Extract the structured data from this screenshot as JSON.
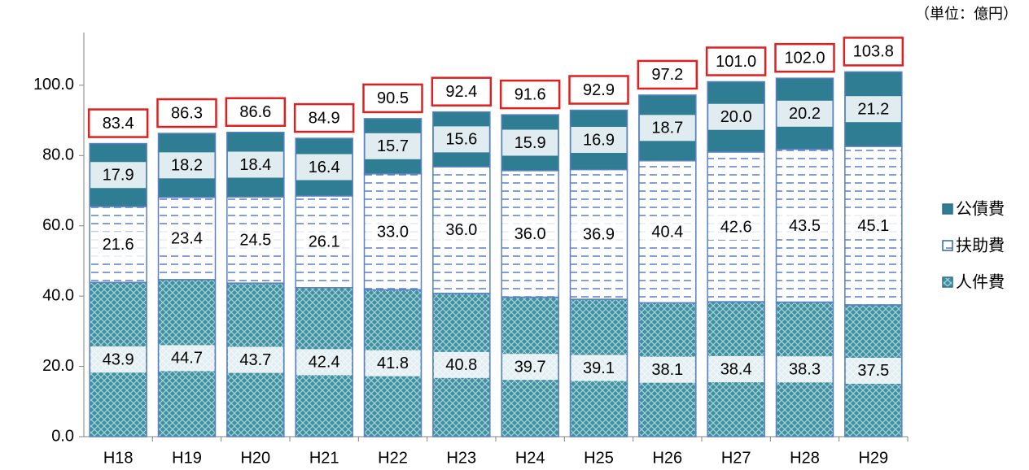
{
  "chart_data": {
    "type": "stacked_bar",
    "unit_note": "（単位：億円）",
    "categories": [
      "H18",
      "H19",
      "H20",
      "H21",
      "H22",
      "H23",
      "H24",
      "H25",
      "H26",
      "H27",
      "H28",
      "H29"
    ],
    "series": [
      {
        "name": "人件費",
        "color": "#3f8f9f",
        "fill_style": "crosshatch",
        "values": [
          43.9,
          44.7,
          43.7,
          42.4,
          41.8,
          40.8,
          39.7,
          39.1,
          38.1,
          38.4,
          38.3,
          37.5
        ],
        "value_labels": [
          "43.9",
          "44.7",
          "43.7",
          "42.4",
          "41.8",
          "40.8",
          "39.7",
          "39.1",
          "38.1",
          "38.4",
          "38.3",
          "37.5"
        ]
      },
      {
        "name": "扶助費",
        "color": "#5b80c4",
        "fill_style": "dashed",
        "values": [
          21.6,
          23.4,
          24.5,
          26.1,
          33.0,
          36.0,
          36.0,
          36.9,
          40.4,
          42.6,
          43.5,
          45.1
        ],
        "value_labels": [
          "21.6",
          "23.4",
          "24.5",
          "26.1",
          "33.0",
          "36.0",
          "36.0",
          "36.9",
          "40.4",
          "42.6",
          "43.5",
          "45.1"
        ]
      },
      {
        "name": "公債費",
        "color": "#2e7d92",
        "fill_style": "solid",
        "values": [
          17.9,
          18.2,
          18.4,
          16.4,
          15.7,
          15.6,
          15.9,
          16.9,
          18.7,
          20.0,
          20.2,
          21.2
        ],
        "value_labels": [
          "17.9",
          "18.2",
          "18.4",
          "16.4",
          "15.7",
          "15.6",
          "15.9",
          "16.9",
          "18.7",
          "20.0",
          "20.2",
          "21.2"
        ]
      }
    ],
    "totals": {
      "color": "#e02020",
      "values": [
        83.4,
        86.3,
        86.6,
        84.9,
        90.5,
        92.4,
        91.6,
        92.9,
        97.2,
        101.0,
        102.0,
        103.8
      ],
      "value_labels": [
        "83.4",
        "86.3",
        "86.6",
        "84.9",
        "90.5",
        "92.4",
        "91.6",
        "92.9",
        "97.2",
        "101.0",
        "102.0",
        "103.8"
      ]
    },
    "ylim": [
      0,
      115
    ],
    "yticks": [
      {
        "value": 0,
        "label": "0.0"
      },
      {
        "value": 20,
        "label": "20.0"
      },
      {
        "value": 40,
        "label": "40.0"
      },
      {
        "value": 60,
        "label": "60.0"
      },
      {
        "value": 80,
        "label": "80.0"
      },
      {
        "value": 100,
        "label": "100.0"
      }
    ],
    "legend": "right"
  }
}
